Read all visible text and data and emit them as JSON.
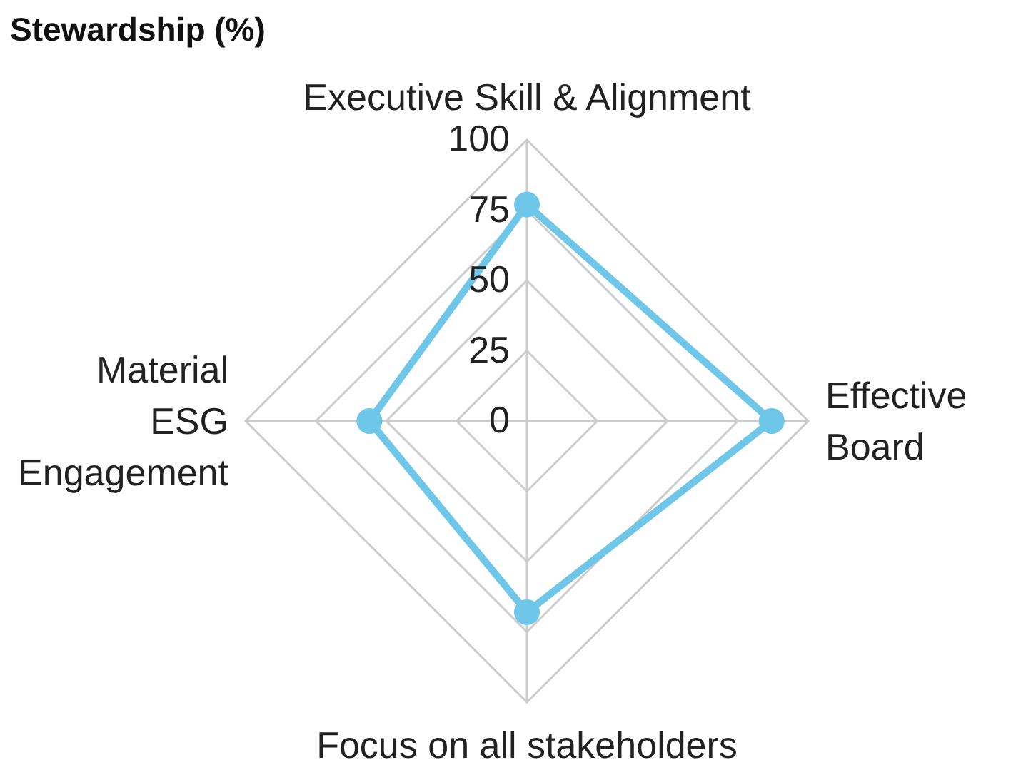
{
  "chart_data": {
    "type": "radar",
    "title": "Stewardship (%)",
    "categories": [
      "Executive Skill & Alignment",
      "Effective Board",
      "Focus on all stakeholders",
      "Material ESG Engagement"
    ],
    "series": [
      {
        "color": "#6ec6e9",
        "values": [
          77,
          87,
          68,
          56
        ]
      }
    ],
    "ylim": [
      0,
      100
    ],
    "yticks": [
      0,
      25,
      50,
      75,
      100
    ],
    "marker": "circle",
    "grid": true
  }
}
